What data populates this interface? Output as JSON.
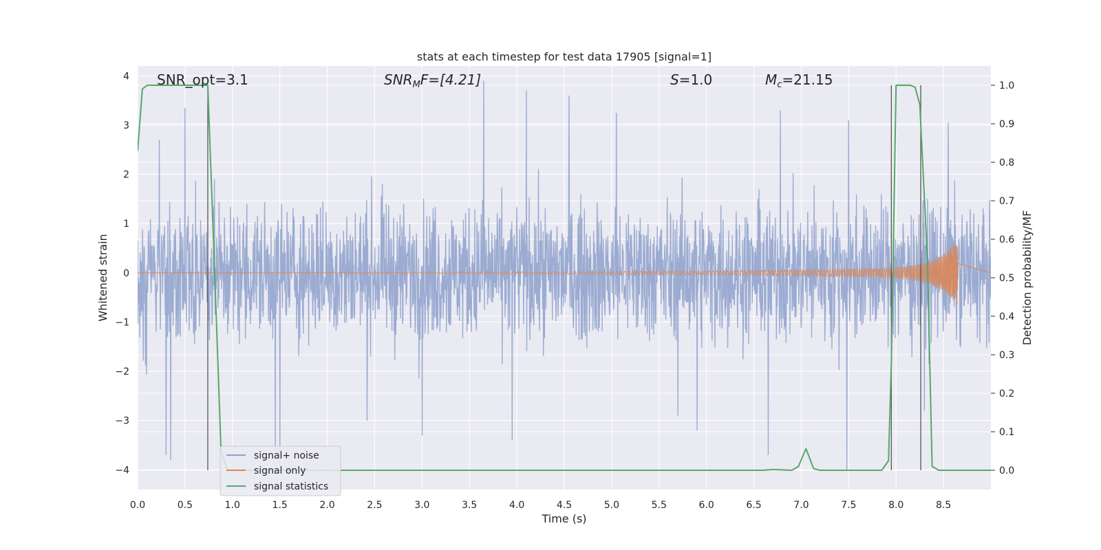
{
  "chart_data": {
    "type": "line",
    "title": "stats at each timestep for test data 17905 [signal=1]",
    "xlabel": "Time (s)",
    "ylabel": "Whitened strain",
    "y2label": "Detection probability/MF",
    "xlim": [
      0.0,
      9.0
    ],
    "ylim": [
      -4.4,
      4.2
    ],
    "y2lim": [
      -0.05,
      1.05
    ],
    "grid": true,
    "legend_position": "bottom-left",
    "x_ticks": [
      "0.0",
      "0.5",
      "1.0",
      "1.5",
      "2.0",
      "2.5",
      "3.0",
      "3.5",
      "4.0",
      "4.5",
      "5.0",
      "5.5",
      "6.0",
      "6.5",
      "7.0",
      "7.5",
      "8.0",
      "8.5"
    ],
    "y_ticks": [
      "−4",
      "−3",
      "−2",
      "−1",
      "0",
      "1",
      "2",
      "3",
      "4"
    ],
    "y2_ticks": [
      "0.0",
      "0.1",
      "0.2",
      "0.3",
      "0.4",
      "0.5",
      "0.6",
      "0.7",
      "0.8",
      "0.9",
      "1.0"
    ],
    "annotations": {
      "snr_opt": "SNR_opt=3.1",
      "snr_mf_sub": "M",
      "snr_mf_value": "F=[4.21]",
      "s_value": "=1.0",
      "mc_sub": "c",
      "mc_value": "=21.15"
    },
    "vertical_lines_x": [
      0.74,
      7.95,
      8.26
    ],
    "series": [
      {
        "name": "signal+ noise",
        "color": "#8da0cb",
        "x_range": [
          0.0,
          9.0
        ],
        "envelope_typical": [
          -1.6,
          1.7
        ],
        "peaks": [
          [
            0.23,
            2.7
          ],
          [
            0.3,
            -3.7
          ],
          [
            0.35,
            -3.8
          ],
          [
            0.5,
            3.35
          ],
          [
            1.45,
            -3.6
          ],
          [
            1.5,
            -3.9
          ],
          [
            2.42,
            -3.0
          ],
          [
            3.0,
            -3.3
          ],
          [
            3.65,
            3.9
          ],
          [
            3.95,
            -3.4
          ],
          [
            4.1,
            3.7
          ],
          [
            4.55,
            3.6
          ],
          [
            5.05,
            3.25
          ],
          [
            5.7,
            -2.9
          ],
          [
            5.9,
            -3.2
          ],
          [
            6.65,
            -3.7
          ],
          [
            6.78,
            3.3
          ],
          [
            7.48,
            -4.0
          ],
          [
            7.5,
            3.1
          ],
          [
            8.3,
            -2.8
          ],
          [
            8.55,
            3.05
          ]
        ]
      },
      {
        "name": "signal only",
        "color": "#dd8452",
        "x": [
          0.0,
          4.5,
          6.0,
          7.0,
          7.8,
          8.1,
          8.3,
          8.45,
          8.55,
          8.62,
          8.65
        ],
        "amplitude": [
          0.0,
          0.02,
          0.04,
          0.06,
          0.09,
          0.13,
          0.2,
          0.32,
          0.45,
          0.6,
          0.66
        ]
      },
      {
        "name": "signal statistics",
        "color": "#55a868",
        "x": [
          0.0,
          0.05,
          0.1,
          0.7,
          0.74,
          0.8,
          0.88,
          0.95,
          6.6,
          6.7,
          6.9,
          6.97,
          7.05,
          7.13,
          7.2,
          7.85,
          7.92,
          7.95,
          8.0,
          8.15,
          8.2,
          8.25,
          8.33,
          8.38,
          8.45,
          9.0
        ],
        "values": [
          0.83,
          0.99,
          1.0,
          1.0,
          1.0,
          0.6,
          0.05,
          0.0,
          0.0,
          0.002,
          0.0,
          0.01,
          0.056,
          0.004,
          0.0,
          0.0,
          0.025,
          0.28,
          1.0,
          1.0,
          0.995,
          0.95,
          0.55,
          0.01,
          0.0,
          0.0
        ]
      }
    ]
  }
}
